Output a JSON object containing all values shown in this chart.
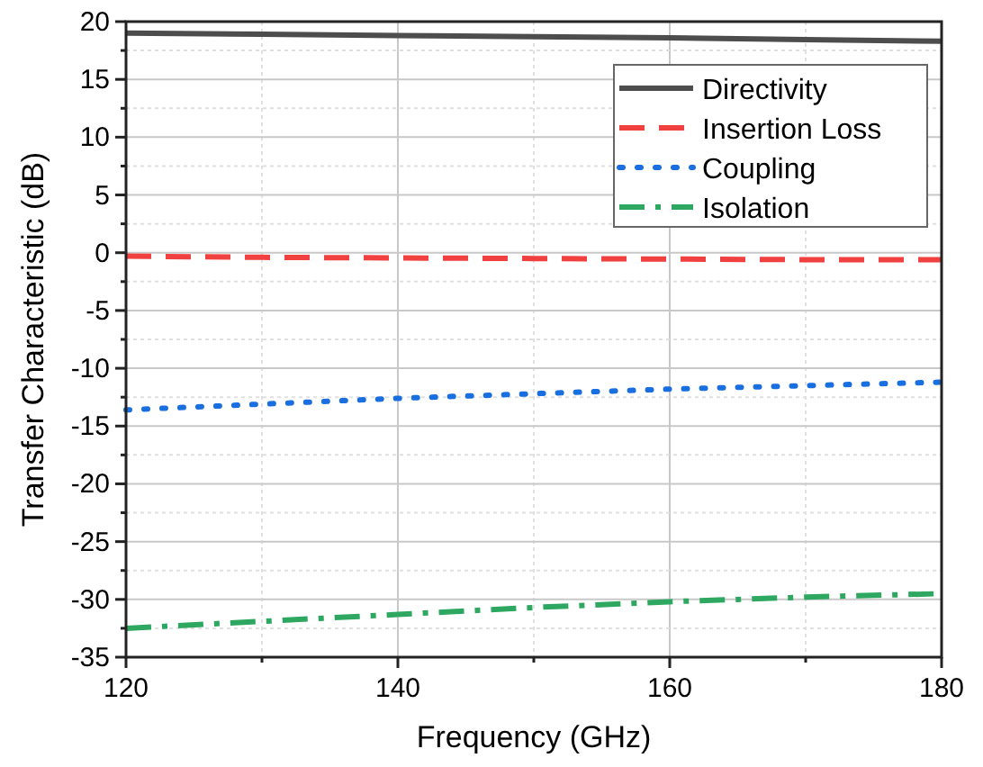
{
  "chart_data": {
    "type": "line",
    "xlabel": "Frequency (GHz)",
    "ylabel": "Transfer Characteristic (dB)",
    "x": [
      120,
      130,
      140,
      150,
      160,
      170,
      180
    ],
    "series": [
      {
        "name": "Directivity",
        "color": "#4d4d4d",
        "line_style": "solid",
        "values": [
          19,
          18.9,
          18.8,
          18.7,
          18.6,
          18.45,
          18.3
        ]
      },
      {
        "name": "Insertion Loss",
        "color": "#f04040",
        "line_style": "dashed",
        "values": [
          -0.3,
          -0.4,
          -0.45,
          -0.5,
          -0.55,
          -0.6,
          -0.6
        ]
      },
      {
        "name": "Coupling",
        "color": "#1a6fe0",
        "line_style": "dotted",
        "values": [
          -13.6,
          -13.1,
          -12.6,
          -12.2,
          -11.8,
          -11.5,
          -11.2
        ]
      },
      {
        "name": "Isolation",
        "color": "#2ea860",
        "line_style": "dashdot",
        "values": [
          -32.5,
          -31.9,
          -31.3,
          -30.7,
          -30.2,
          -29.8,
          -29.5
        ]
      }
    ],
    "xlim": [
      120,
      180
    ],
    "xticks": [
      120,
      {
        "value": 130,
        "label": null
      },
      140,
      {
        "value": 150,
        "label": null
      },
      160,
      {
        "value": 170,
        "label": null
      },
      180
    ],
    "ylim": [
      -35,
      20
    ],
    "yticks": [
      -35,
      {
        "value": -32.5,
        "label": null
      },
      -30,
      {
        "value": -27.5,
        "label": null
      },
      -25,
      {
        "value": -22.5,
        "label": null
      },
      -20,
      {
        "value": -17.5,
        "label": null
      },
      -15,
      {
        "value": -12.5,
        "label": null
      },
      -10,
      {
        "value": -7.5,
        "label": null
      },
      -5,
      {
        "value": -2.5,
        "label": null
      },
      0,
      {
        "value": 2.5,
        "label": null
      },
      5,
      {
        "value": 7.5,
        "label": null
      },
      10,
      {
        "value": 12.5,
        "label": null
      },
      15,
      {
        "value": 17.5,
        "label": null
      },
      20
    ],
    "grid": true,
    "legend": "top right",
    "marker": "none"
  }
}
